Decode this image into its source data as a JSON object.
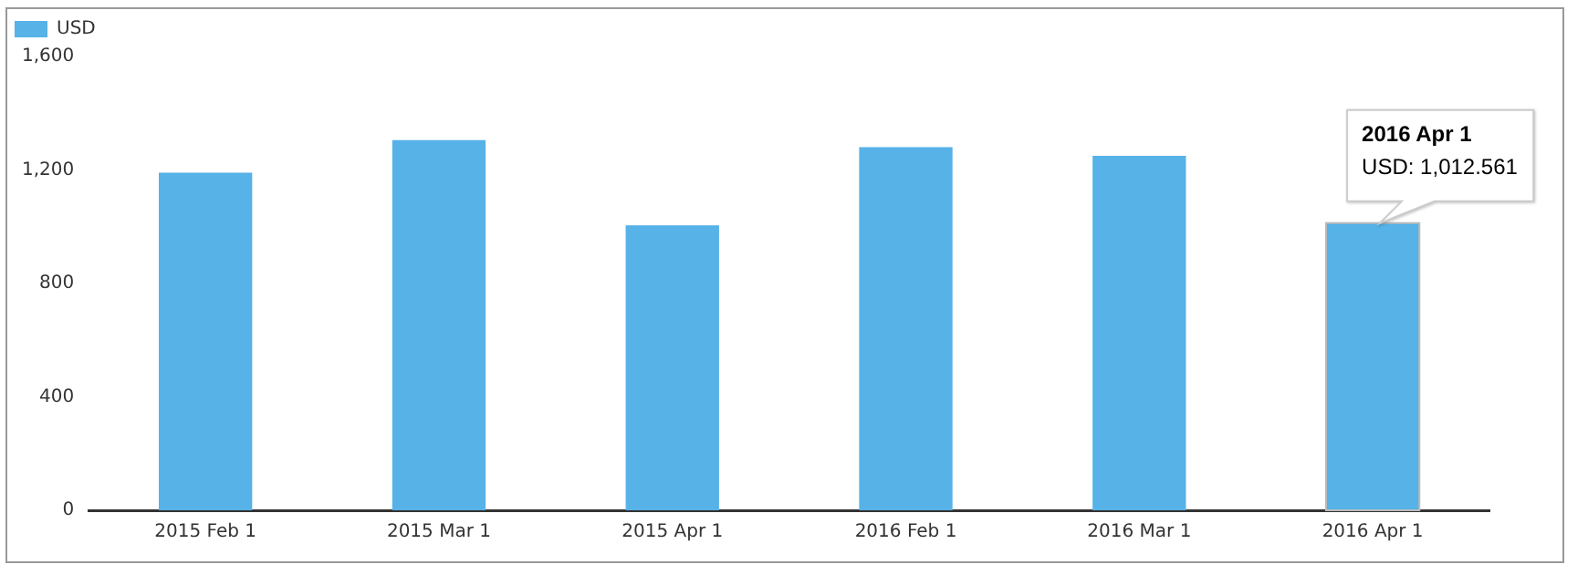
{
  "chart_data": {
    "type": "bar",
    "categories": [
      "2015 Feb 1",
      "2015 Mar 1",
      "2015 Apr 1",
      "2016 Feb 1",
      "2016 Mar 1",
      "2016 Apr 1"
    ],
    "series": [
      {
        "name": "USD",
        "color": "#56b2e7",
        "values": [
          1190,
          1305,
          1005,
          1280,
          1250,
          1012.561
        ]
      }
    ],
    "annotations": [
      "2016 Apr 1",
      "USD: 1,012.561"
    ],
    "ylim": [
      0,
      1600
    ],
    "yticks": [
      {
        "value": 0,
        "label": "0"
      },
      {
        "value": 400,
        "label": "400"
      },
      {
        "value": 800,
        "label": "800"
      },
      {
        "value": 1200,
        "label": "1,200"
      },
      {
        "value": 1600,
        "label": "1,600"
      }
    ],
    "grid": false,
    "legend": "top left"
  }
}
